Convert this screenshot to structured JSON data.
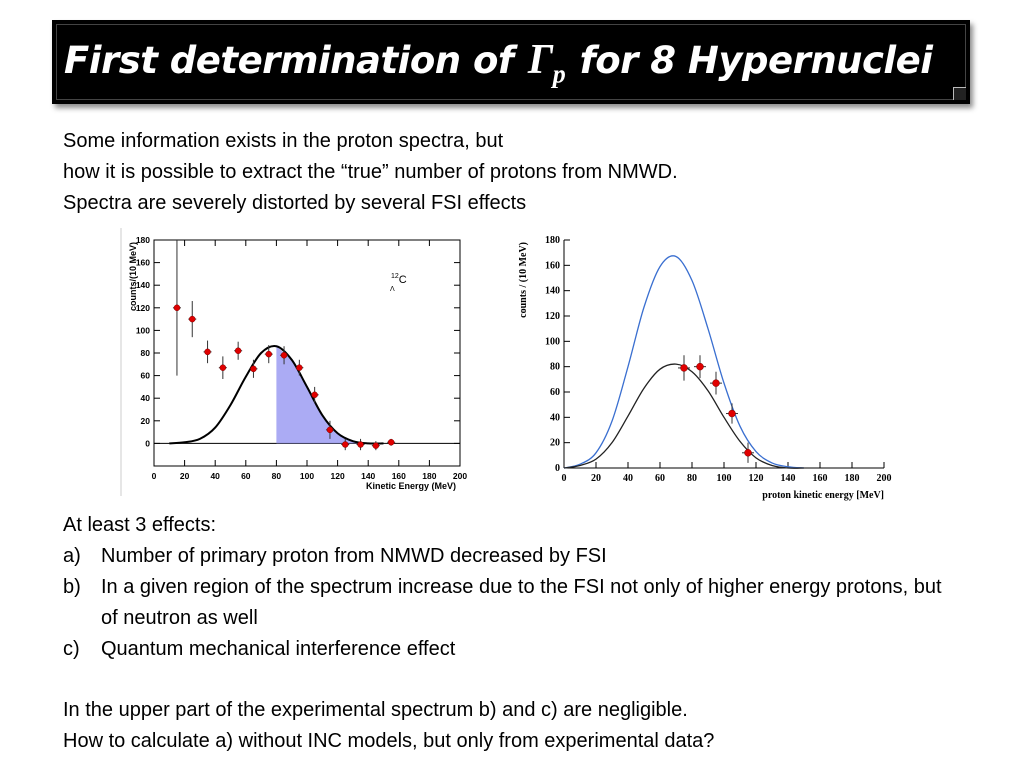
{
  "title": {
    "prefix": "First determination of",
    "gamma_symbol": "Γ",
    "gamma_subscript": "p",
    "suffix": "for 8 Hypernuclei"
  },
  "intro": {
    "line1": "Some information exists in the proton spectra, but",
    "line2": "how it is possible to extract the “true” number of protons from NMWD.",
    "line3": "Spectra are severely distorted by several FSI effects"
  },
  "chart_data": [
    {
      "type": "scatter",
      "title": "",
      "xlabel": "Kinetic Energy (MeV)",
      "ylabel": "counts/(10 MeV)",
      "xlim": [
        0,
        200
      ],
      "ylim": [
        -20,
        180
      ],
      "xticks": [
        "0",
        "20",
        "40",
        "60",
        "80",
        "100",
        "120",
        "140",
        "160",
        "180",
        "200"
      ],
      "yticks": [
        "0",
        "20",
        "40",
        "60",
        "80",
        "100",
        "120",
        "140",
        "160",
        "180"
      ],
      "annotation": {
        "sup": "12",
        "main": "C",
        "sub": "Λ"
      },
      "series": [
        {
          "kind": "points",
          "x": [
            15,
            25,
            35,
            45,
            55,
            65,
            75,
            85,
            95,
            105,
            115,
            125,
            135,
            145,
            155
          ],
          "y": [
            120,
            110,
            81,
            67,
            82,
            66,
            79,
            78,
            67,
            43,
            12,
            -1,
            -1,
            -2,
            1
          ],
          "yerr": [
            60,
            16,
            10,
            10,
            8,
            8,
            8,
            8,
            7,
            7,
            8,
            5,
            5,
            4,
            3
          ],
          "color": "#e00000"
        },
        {
          "kind": "curve",
          "x": [
            10,
            20,
            30,
            40,
            50,
            60,
            70,
            80,
            90,
            100,
            110,
            120,
            130,
            140,
            150
          ],
          "y": [
            0,
            1,
            4,
            14,
            34,
            59,
            80,
            86,
            74,
            50,
            25,
            9,
            2,
            0,
            0
          ],
          "color": "#000000"
        },
        {
          "kind": "shaded",
          "x_from": 80,
          "x_to": 140,
          "color": "#8f8ff0"
        }
      ]
    },
    {
      "type": "line",
      "title": "",
      "xlabel": "proton kinetic energy [MeV]",
      "ylabel": "counts / (10 MeV)",
      "xlim": [
        0,
        200
      ],
      "ylim": [
        0,
        180
      ],
      "xticks": [
        "0",
        "20",
        "40",
        "60",
        "80",
        "100",
        "120",
        "140",
        "160",
        "180",
        "200"
      ],
      "yticks": [
        "0",
        "20",
        "40",
        "60",
        "80",
        "100",
        "120",
        "140",
        "160",
        "180"
      ],
      "series": [
        {
          "kind": "curve",
          "x": [
            0,
            10,
            20,
            30,
            40,
            50,
            60,
            70,
            80,
            90,
            100,
            110,
            120,
            130,
            140,
            150
          ],
          "y": [
            0,
            3,
            12,
            37,
            80,
            127,
            159,
            167,
            148,
            110,
            67,
            33,
            13,
            4,
            1,
            0
          ],
          "color": "#3a6fd0"
        },
        {
          "kind": "curve",
          "x": [
            0,
            10,
            20,
            30,
            40,
            50,
            60,
            70,
            80,
            90,
            100,
            110,
            120,
            130,
            140,
            150
          ],
          "y": [
            0,
            2,
            7,
            20,
            41,
            63,
            78,
            82,
            76,
            61,
            40,
            21,
            8,
            2,
            0,
            0
          ],
          "color": "#222222"
        },
        {
          "kind": "points",
          "x": [
            75,
            85,
            95,
            105,
            115
          ],
          "y": [
            79,
            80,
            67,
            43,
            12
          ],
          "yerr": [
            10,
            9,
            9,
            8,
            8
          ],
          "color": "#e00000"
        }
      ]
    }
  ],
  "effects": {
    "heading": "At least 3 effects:",
    "items": [
      {
        "marker": "a)",
        "text": "Number of primary proton from NMWD decreased by FSI"
      },
      {
        "marker": "b)",
        "text": "In a given region of the spectrum increase due to the FSI not only of higher energy protons, but of neutron as well"
      },
      {
        "marker": "c)",
        "text": "Quantum mechanical interference effect"
      }
    ]
  },
  "conclusion": {
    "line1": "In the upper part of the experimental spectrum b) and c) are negligible.",
    "line2": "How to calculate a) without INC models, but only from experimental data?"
  }
}
